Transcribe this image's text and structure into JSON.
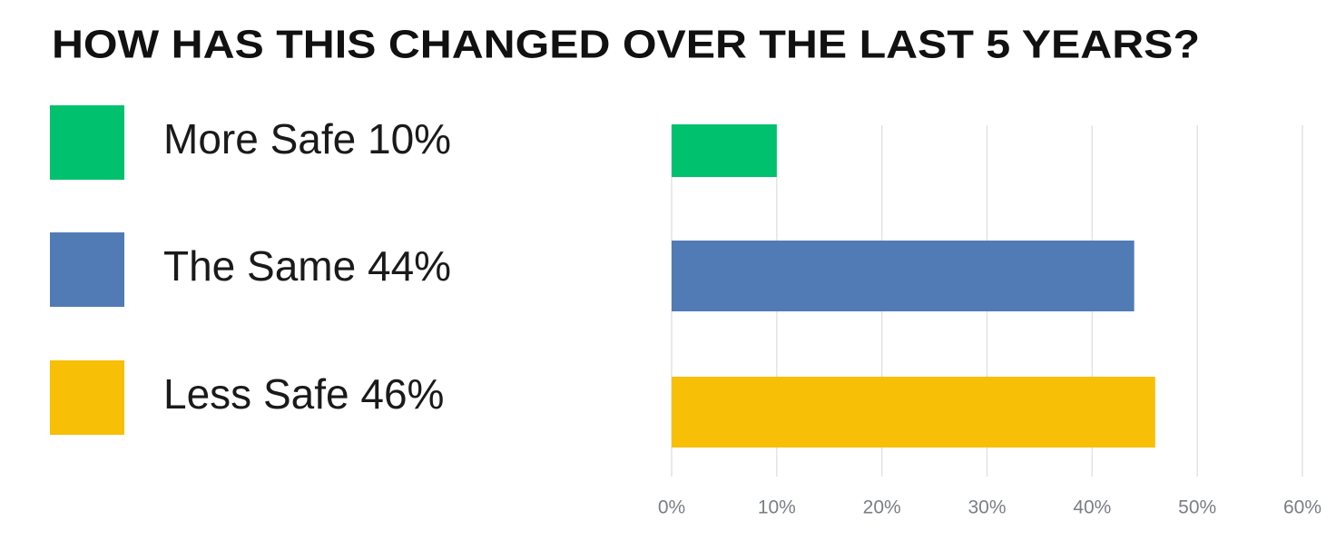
{
  "chart_data": {
    "type": "bar",
    "orientation": "horizontal",
    "title": "HOW HAS THIS CHANGED OVER THE LAST 5 YEARS?",
    "categories": [
      "More Safe",
      "The Same",
      "Less Safe"
    ],
    "values": [
      10,
      44,
      46
    ],
    "value_labels": [
      "10%",
      "44%",
      "46%"
    ],
    "colors": [
      "#00c16e",
      "#517bb5",
      "#f7bf05"
    ],
    "xlim": [
      0,
      60
    ],
    "xticks": [
      {
        "value": 0,
        "label": "0%"
      },
      {
        "value": 10,
        "label": "10%"
      },
      {
        "value": 20,
        "label": "20%"
      },
      {
        "value": 30,
        "label": "30%"
      },
      {
        "value": 40,
        "label": "40%"
      },
      {
        "value": 50,
        "label": "50%"
      },
      {
        "value": 60,
        "label": "60%"
      }
    ],
    "grid": true
  }
}
